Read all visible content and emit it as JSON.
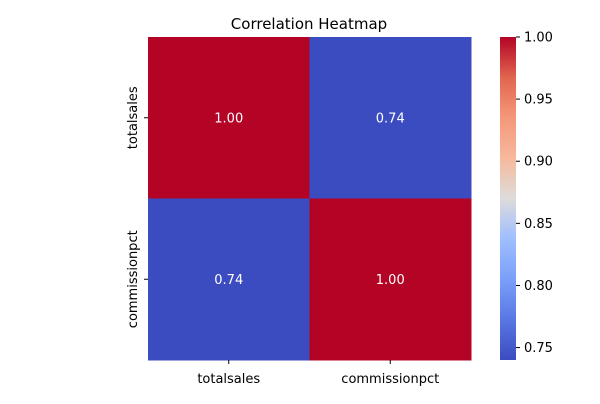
{
  "chart_data": {
    "type": "heatmap",
    "title": "Correlation Heatmap",
    "x_labels": [
      "totalsales",
      "commissionpct"
    ],
    "y_labels": [
      "totalsales",
      "commissionpct"
    ],
    "values": [
      [
        1.0,
        0.74
      ],
      [
        0.74,
        1.0
      ]
    ],
    "value_format": "0.00",
    "colormap": "coolwarm",
    "colorbar": {
      "min": 0.74,
      "max": 1.0,
      "ticks": [
        "0.75",
        "0.80",
        "0.85",
        "0.90",
        "0.95",
        "1.00"
      ]
    },
    "colors": {
      "low": "#3b4cc0",
      "mid": "#dddcdb",
      "high": "#b40426"
    }
  }
}
